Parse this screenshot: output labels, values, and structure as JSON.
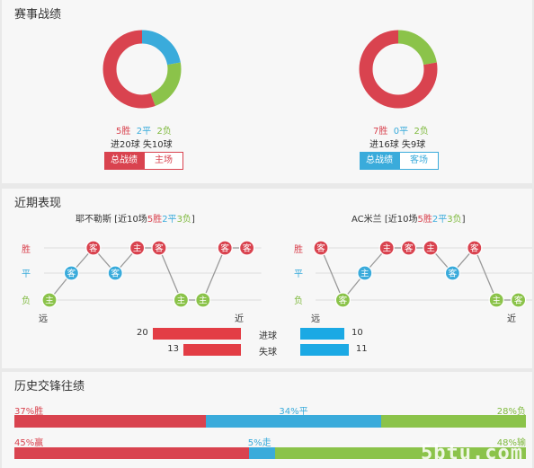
{
  "colors": {
    "win": "#d9434f",
    "draw": "#3aabdb",
    "loss": "#8bc34a",
    "accent": "#d9434f"
  },
  "match_record": {
    "title": "赛事战绩",
    "home": {
      "wins_label": "5胜",
      "draws_label": "2平",
      "losses_label": "2负",
      "goals_line": "进20球  失10球",
      "tab_active": "总战绩",
      "tab_other": "主场",
      "donut": {
        "wins": 5,
        "draws": 2,
        "losses": 2
      }
    },
    "away": {
      "wins_label": "7胜",
      "draws_label": "0平",
      "losses_label": "2负",
      "goals_line": "进16球  失9球",
      "tab_active": "总战绩",
      "tab_other": "客场",
      "donut": {
        "wins": 7,
        "draws": 0,
        "losses": 2
      }
    }
  },
  "recent_form": {
    "title": "近期表现",
    "row_labels": {
      "win": "胜",
      "draw": "平",
      "loss": "负"
    },
    "far_label": "远",
    "near_label": "近",
    "home": {
      "team": "耶不勒斯",
      "summary_prefix": " [近10场",
      "w": "5胜",
      "d": "2平",
      "l": "3负",
      "summary_suffix": "]",
      "matches": [
        {
          "result": "loss",
          "venue": "主"
        },
        {
          "result": "draw",
          "venue": "客"
        },
        {
          "result": "win",
          "venue": "客"
        },
        {
          "result": "draw",
          "venue": "客"
        },
        {
          "result": "win",
          "venue": "主"
        },
        {
          "result": "win",
          "venue": "客"
        },
        {
          "result": "loss",
          "venue": "主"
        },
        {
          "result": "loss",
          "venue": "主"
        },
        {
          "result": "win",
          "venue": "客"
        },
        {
          "result": "win",
          "venue": "客"
        }
      ]
    },
    "away": {
      "team": "AC米兰",
      "summary_prefix": " [近10场",
      "w": "5胜",
      "d": "2平",
      "l": "3负",
      "summary_suffix": "]",
      "matches": [
        {
          "result": "win",
          "venue": "客"
        },
        {
          "result": "loss",
          "venue": "客"
        },
        {
          "result": "draw",
          "venue": "主"
        },
        {
          "result": "win",
          "venue": "主"
        },
        {
          "result": "win",
          "venue": "客"
        },
        {
          "result": "win",
          "venue": "主"
        },
        {
          "result": "draw",
          "venue": "客"
        },
        {
          "result": "win",
          "venue": "客"
        },
        {
          "result": "loss",
          "venue": "主"
        },
        {
          "result": "loss",
          "venue": "客"
        }
      ]
    },
    "goals": {
      "scored_label": "进球",
      "conceded_label": "失球",
      "home_scored": 20,
      "home_conceded": 13,
      "away_scored": 10,
      "away_conceded": 11
    }
  },
  "history": {
    "title": "历史交锋往绩",
    "bar1": {
      "left_label": "37%胜",
      "mid_label": "34%平",
      "right_label": "28%负",
      "left": 37,
      "mid": 34,
      "right": 28
    },
    "bar2": {
      "left_label": "45%赢",
      "mid_label": "5%走",
      "right_label": "48%输",
      "left": 45,
      "mid": 5,
      "right": 48
    }
  },
  "watermark": "5btu.com"
}
